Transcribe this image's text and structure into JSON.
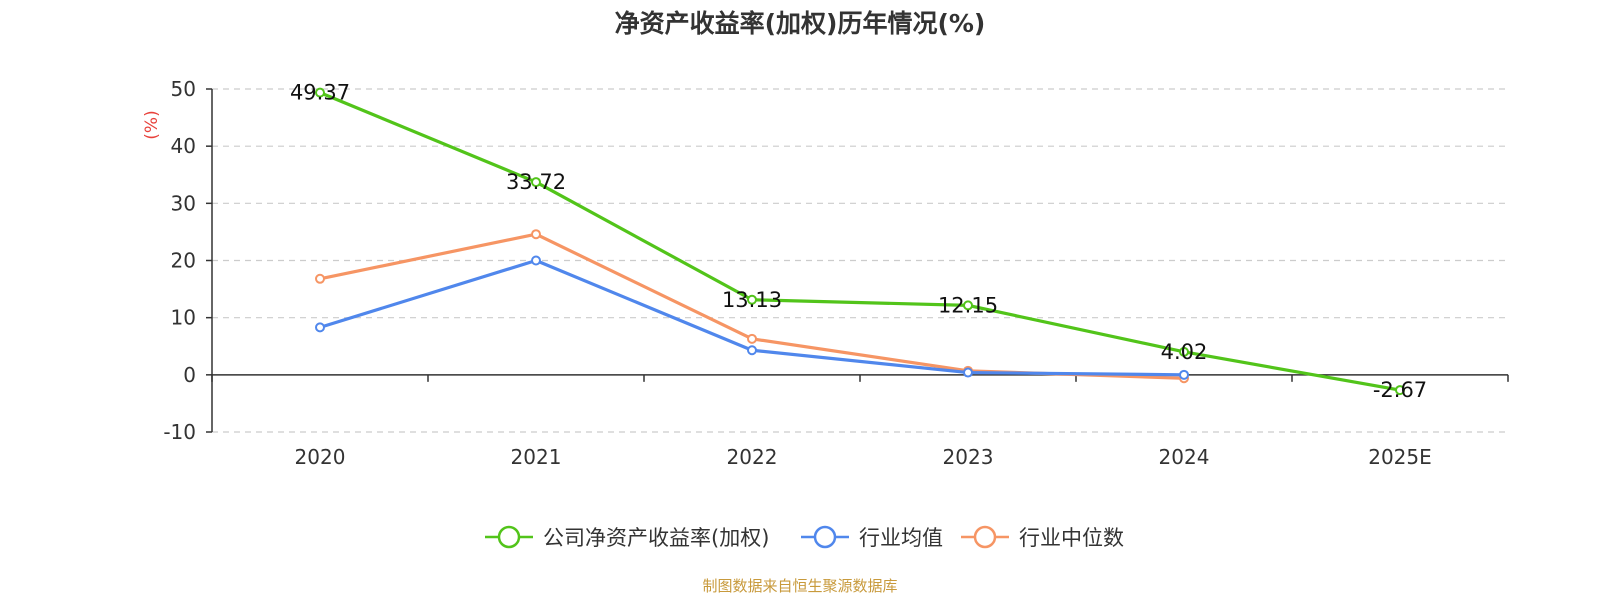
{
  "colors": {
    "company": "#52c41a",
    "industry_avg": "#5087ec",
    "industry_median": "#f69564",
    "unit": "#e8413b",
    "source": "#c89a3c",
    "grid": "#cccccc",
    "axis": "#333333"
  },
  "chart_data": {
    "type": "line",
    "title": "净资产收益率(加权)历年情况(%)",
    "ylabel": "(%)",
    "xlabel": "",
    "categories": [
      "2020",
      "2021",
      "2022",
      "2023",
      "2024",
      "2025E"
    ],
    "ylim": [
      -10,
      50
    ],
    "yticks": [
      50,
      40,
      30,
      20,
      10,
      0,
      -10
    ],
    "grid": true,
    "legend_position": "bottom-center",
    "series": [
      {
        "key": "company",
        "name": "公司净资产收益率(加权)",
        "values": [
          49.37,
          33.72,
          13.13,
          12.15,
          4.02,
          -2.67
        ],
        "labels": [
          "49.37",
          "33.72",
          "13.13",
          "12.15",
          "4.02",
          "-2.67"
        ],
        "show_labels": true
      },
      {
        "key": "industry_avg",
        "name": "行业均值",
        "values": [
          8.3,
          20.0,
          4.3,
          0.4,
          0.0,
          null
        ],
        "show_labels": false
      },
      {
        "key": "industry_median",
        "name": "行业中位数",
        "values": [
          16.8,
          24.6,
          6.3,
          0.7,
          -0.6,
          null
        ],
        "show_labels": false
      }
    ]
  },
  "source": "制图数据来自恒生聚源数据库"
}
